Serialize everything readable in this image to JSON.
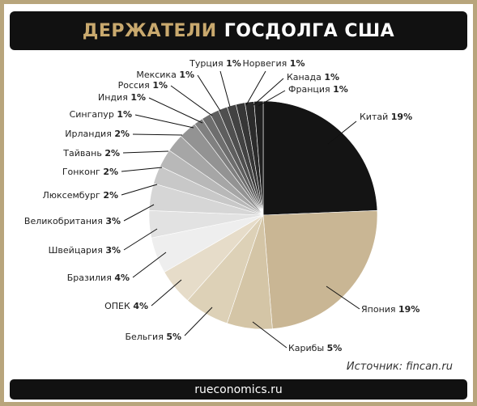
{
  "header": {
    "title_accent": "ДЕРЖАТЕЛИ",
    "title_main": "ГОСДОЛГА США"
  },
  "source": "Источник: fincan.ru",
  "footer": {
    "site": "rueconomics.ru"
  },
  "colors": {
    "frame": "#b8a57c",
    "title_accent": "#c9a96e",
    "bar": "#111111"
  },
  "chart_data": {
    "type": "pie",
    "title": "ДЕРЖАТЕЛИ ГОСДОЛГА США",
    "slices": [
      {
        "label": "Китай",
        "value": 19,
        "value_label": "19%",
        "color": "#141414"
      },
      {
        "label": "Япония",
        "value": 19,
        "value_label": "19%",
        "color": "#c9b694"
      },
      {
        "label": "Карибы",
        "value": 5,
        "value_label": "5%",
        "color": "#d4c5a6"
      },
      {
        "label": "Бельгия",
        "value": 5,
        "value_label": "5%",
        "color": "#ddd1b7"
      },
      {
        "label": "ОПЕК",
        "value": 4,
        "value_label": "4%",
        "color": "#e6dcc9"
      },
      {
        "label": "Бразилия",
        "value": 4,
        "value_label": "4%",
        "color": "#eeeeee"
      },
      {
        "label": "Швейцария",
        "value": 3,
        "value_label": "3%",
        "color": "#e2e2e2"
      },
      {
        "label": "Великобритания",
        "value": 3,
        "value_label": "3%",
        "color": "#d6d6d6"
      },
      {
        "label": "Люксембург",
        "value": 2,
        "value_label": "2%",
        "color": "#c8c8c8"
      },
      {
        "label": "Гонконг",
        "value": 2,
        "value_label": "2%",
        "color": "#b8b8b8"
      },
      {
        "label": "Тайвань",
        "value": 2,
        "value_label": "2%",
        "color": "#a6a6a6"
      },
      {
        "label": "Ирландия",
        "value": 2,
        "value_label": "2%",
        "color": "#939393"
      },
      {
        "label": "Сингапур",
        "value": 1,
        "value_label": "1%",
        "color": "#808080"
      },
      {
        "label": "Индия",
        "value": 1,
        "value_label": "1%",
        "color": "#6e6e6e"
      },
      {
        "label": "Россия",
        "value": 1,
        "value_label": "1%",
        "color": "#5e5e5e"
      },
      {
        "label": "Мексика",
        "value": 1,
        "value_label": "1%",
        "color": "#4f4f4f"
      },
      {
        "label": "Турция",
        "value": 1,
        "value_label": "1%",
        "color": "#424242"
      },
      {
        "label": "Норвегия",
        "value": 1,
        "value_label": "1%",
        "color": "#363636"
      },
      {
        "label": "Канада",
        "value": 1,
        "value_label": "1%",
        "color": "#2b2b2b"
      },
      {
        "label": "Франция",
        "value": 1,
        "value_label": "1%",
        "color": "#202020"
      }
    ]
  }
}
